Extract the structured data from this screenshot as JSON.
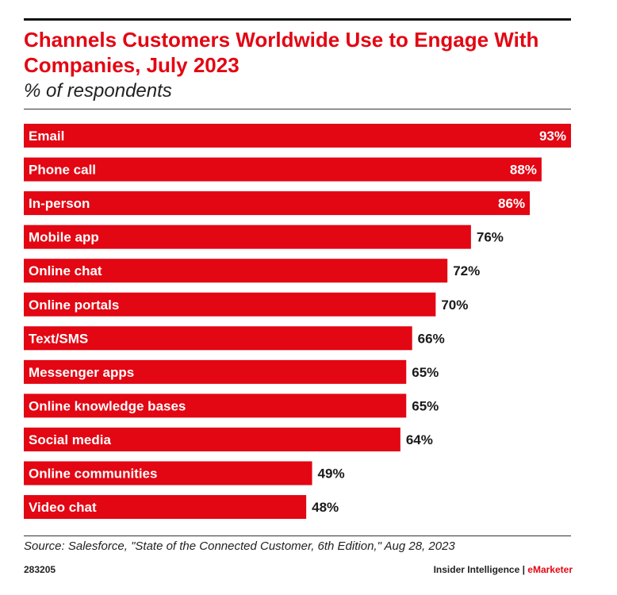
{
  "chart_data": {
    "type": "bar",
    "orientation": "horizontal",
    "title": "Channels Customers Worldwide Use to Engage With Companies, July 2023",
    "subtitle": "% of respondents",
    "categories": [
      "Email",
      "Phone call",
      "In-person",
      "Mobile app",
      "Online chat",
      "Online portals",
      "Text/SMS",
      "Messenger apps",
      "Online knowledge bases",
      "Social media",
      "Online communities",
      "Video chat"
    ],
    "values": [
      93,
      88,
      86,
      76,
      72,
      70,
      66,
      65,
      65,
      64,
      49,
      48
    ],
    "value_labels": [
      "93%",
      "88%",
      "86%",
      "76%",
      "72%",
      "70%",
      "66%",
      "65%",
      "65%",
      "64%",
      "49%",
      "48%"
    ],
    "xlim": [
      0,
      93
    ],
    "grid": false,
    "bar_color": "#e30613"
  },
  "footer": {
    "source": "Source: Salesforce, \"State of the Connected Customer, 6th Edition,\" Aug 28, 2023",
    "chart_id": "283205",
    "brand_main": "Insider Intelligence | ",
    "brand_accent": "eMarketer"
  },
  "colors": {
    "accent": "#e30613",
    "text": "#1a1a1a",
    "bar_text": "#ffffff"
  }
}
